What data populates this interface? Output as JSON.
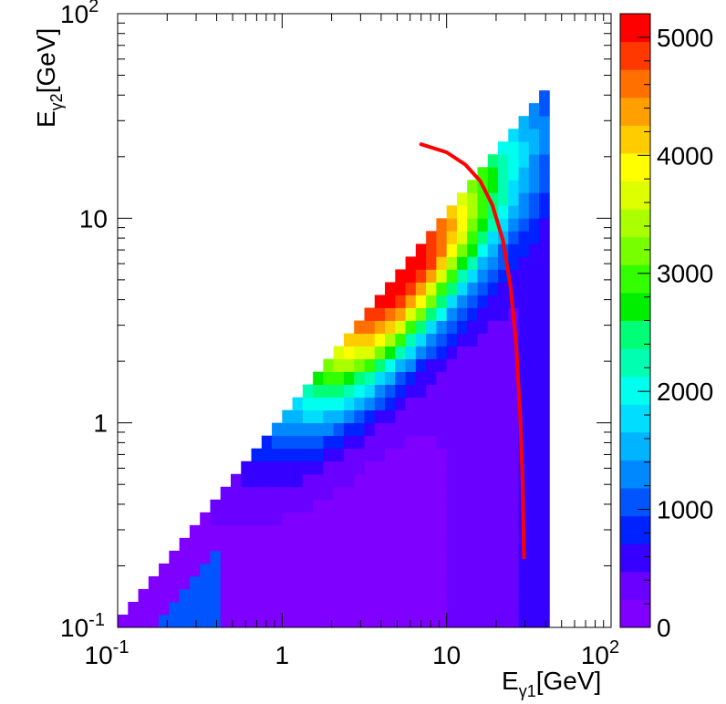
{
  "chart_data": {
    "type": "heatmap",
    "title": "",
    "x_axis": {
      "scale": "log",
      "range": [
        0.1,
        100
      ],
      "label_main": "E",
      "label_sub": "γ1",
      "label_tail": "[GeV]",
      "ticks": [
        {
          "value": 0.1,
          "base": "10",
          "exp": "-1"
        },
        {
          "value": 1,
          "base": "1",
          "exp": ""
        },
        {
          "value": 10,
          "base": "10",
          "exp": ""
        },
        {
          "value": 100,
          "base": "10",
          "exp": "2"
        }
      ]
    },
    "y_axis": {
      "scale": "log",
      "range": [
        0.1,
        100
      ],
      "label_main": "E",
      "label_sub": "γ2",
      "label_tail": "[GeV]",
      "ticks": [
        {
          "value": 0.1,
          "base": "10",
          "exp": "-1"
        },
        {
          "value": 1,
          "base": "1",
          "exp": ""
        },
        {
          "value": 10,
          "base": "10",
          "exp": ""
        },
        {
          "value": 100,
          "base": "10",
          "exp": "2"
        }
      ]
    },
    "z_axis": {
      "range": [
        0,
        5200
      ],
      "ticks": [
        "0",
        "1000",
        "2000",
        "3000",
        "4000",
        "5000"
      ],
      "tick_values": [
        0,
        1000,
        2000,
        3000,
        4000,
        5000
      ]
    },
    "palette": [
      "#7f00ff",
      "#6a00ff",
      "#3500ff",
      "#0022ff",
      "#0055ff",
      "#0088ff",
      "#00b4ff",
      "#00ddff",
      "#00ffee",
      "#00ffb0",
      "#00ff77",
      "#00ee00",
      "#33ff00",
      "#77ff00",
      "#aaff00",
      "#ddff00",
      "#ffff00",
      "#ffcc00",
      "#ffa000",
      "#ff7000",
      "#ff3800",
      "#ff0000"
    ],
    "bins_per_decade": 16,
    "density_model": {
      "peak_x": 5.2,
      "peak_y": 5.2,
      "peak_value": 5200,
      "diag_sigma_decades": 0.29,
      "floor_value": 120,
      "upper_edge": "E_gamma2 <= E_gamma1",
      "x_cutoff": 42
    },
    "curve": {
      "color": "#ff0000",
      "points": [
        [
          7,
          23
        ],
        [
          10,
          21
        ],
        [
          13,
          18.3
        ],
        [
          16,
          15.2
        ],
        [
          19,
          11.6
        ],
        [
          22,
          7.8
        ],
        [
          24.5,
          4.6
        ],
        [
          26.5,
          2.4
        ],
        [
          28,
          1.1
        ],
        [
          29,
          0.5
        ],
        [
          29.5,
          0.22
        ]
      ]
    },
    "grid": false,
    "legend": "none"
  }
}
